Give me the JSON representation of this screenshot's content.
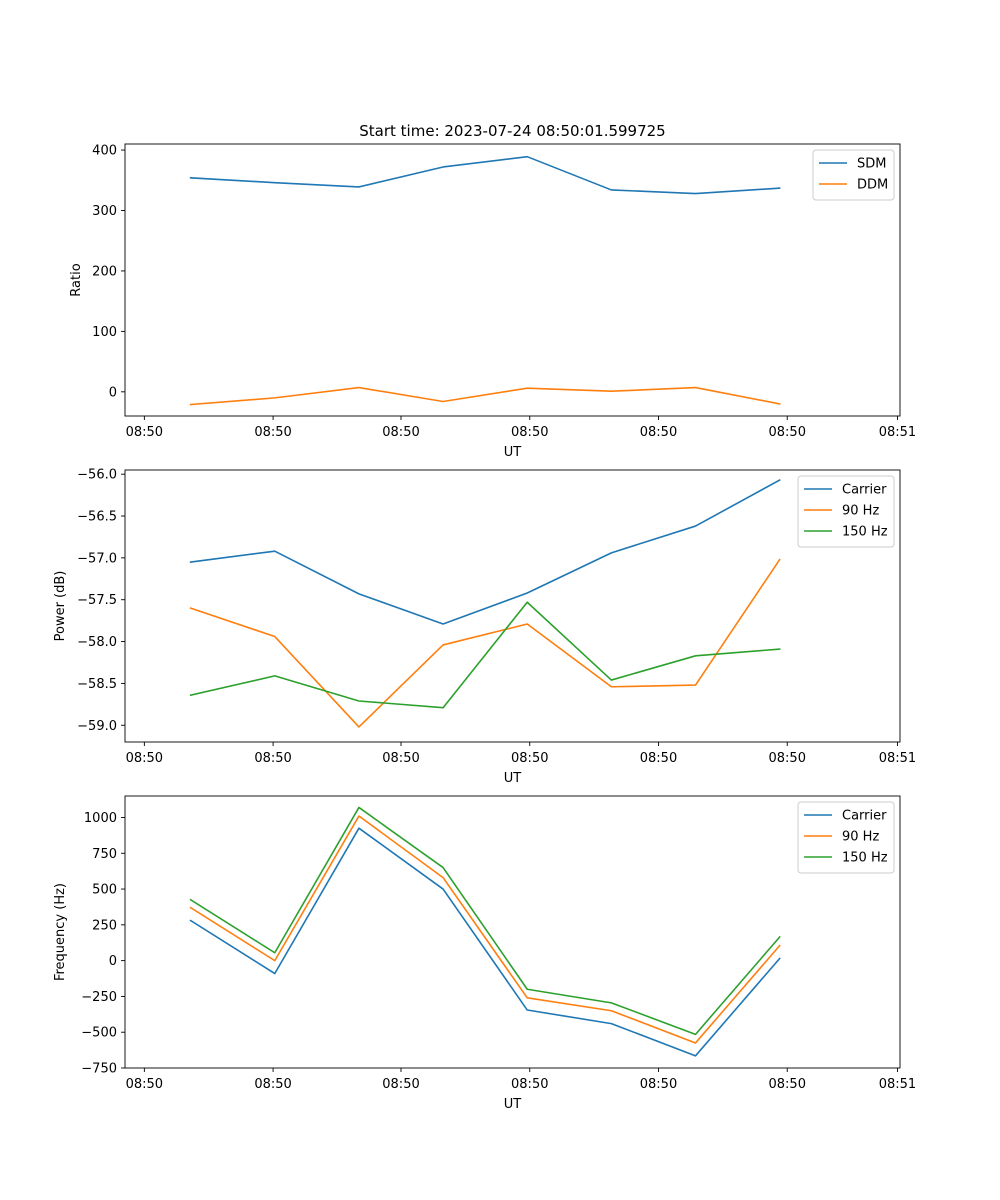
{
  "figure_title": "Start time: 2023-07-24 08:50:01.599725",
  "colors": {
    "blue": "#1f77b4",
    "orange": "#ff7f0e",
    "green": "#2ca02c",
    "axis": "#000000",
    "background": "#ffffff",
    "legend_border": "#cccccc"
  },
  "chart_data": [
    {
      "type": "line",
      "title": "Start time: 2023-07-24 08:50:01.599725",
      "xlabel": "UT",
      "ylabel": "Ratio",
      "x": [
        1,
        2,
        3,
        4,
        5,
        6,
        7,
        8
      ],
      "xlim": [
        0.22,
        9.43
      ],
      "x_ticks": [
        0.45,
        1.98,
        3.5,
        5.03,
        6.56,
        8.09,
        9.4
      ],
      "x_tick_labels": [
        "08:50",
        "08:50",
        "08:50",
        "08:50",
        "08:50",
        "08:50",
        "08:51"
      ],
      "ylim": [
        -40,
        410
      ],
      "y_ticks": [
        0,
        100,
        200,
        300,
        400
      ],
      "y_tick_labels": [
        "0",
        "100",
        "200",
        "300",
        "400"
      ],
      "legend": "top-right",
      "series": [
        {
          "name": "SDM",
          "color": "#1f77b4",
          "values": [
            354,
            346,
            339,
            372,
            389,
            334,
            328,
            337
          ]
        },
        {
          "name": "DDM",
          "color": "#ff7f0e",
          "values": [
            -21,
            -10,
            7,
            -16,
            6,
            1,
            7,
            -20
          ]
        }
      ]
    },
    {
      "type": "line",
      "title": "",
      "xlabel": "UT",
      "ylabel": "Power (dB)",
      "x": [
        1,
        2,
        3,
        4,
        5,
        6,
        7,
        8
      ],
      "xlim": [
        0.22,
        9.43
      ],
      "x_ticks": [
        0.45,
        1.98,
        3.5,
        5.03,
        6.56,
        8.09,
        9.4
      ],
      "x_tick_labels": [
        "08:50",
        "08:50",
        "08:50",
        "08:50",
        "08:50",
        "08:50",
        "08:51"
      ],
      "ylim": [
        -59.2,
        -55.95
      ],
      "y_ticks": [
        -59.0,
        -58.5,
        -58.0,
        -57.5,
        -57.0,
        -56.5,
        -56.0
      ],
      "y_tick_labels": [
        "−59.0",
        "−58.5",
        "−58.0",
        "−57.5",
        "−57.0",
        "−56.5",
        "−56.0"
      ],
      "legend": "top-right",
      "series": [
        {
          "name": "Carrier",
          "color": "#1f77b4",
          "values": [
            -57.05,
            -56.92,
            -57.43,
            -57.79,
            -57.42,
            -56.94,
            -56.62,
            -56.07
          ]
        },
        {
          "name": "90 Hz",
          "color": "#ff7f0e",
          "values": [
            -57.6,
            -57.94,
            -59.02,
            -58.04,
            -57.79,
            -58.54,
            -58.52,
            -57.02
          ]
        },
        {
          "name": "150 Hz",
          "color": "#2ca02c",
          "values": [
            -58.64,
            -58.41,
            -58.71,
            -58.79,
            -57.53,
            -58.46,
            -58.17,
            -58.09
          ]
        }
      ]
    },
    {
      "type": "line",
      "title": "",
      "xlabel": "UT",
      "ylabel": "Frequency (Hz)",
      "x": [
        1,
        2,
        3,
        4,
        5,
        6,
        7,
        8
      ],
      "xlim": [
        0.22,
        9.43
      ],
      "x_ticks": [
        0.45,
        1.98,
        3.5,
        5.03,
        6.56,
        8.09,
        9.4
      ],
      "x_tick_labels": [
        "08:50",
        "08:50",
        "08:50",
        "08:50",
        "08:50",
        "08:50",
        "08:51"
      ],
      "ylim": [
        -750,
        1150
      ],
      "y_ticks": [
        -750,
        -500,
        -250,
        0,
        250,
        500,
        750,
        1000
      ],
      "y_tick_labels": [
        "−750",
        "−500",
        "−250",
        "0",
        "250",
        "500",
        "750",
        "1000"
      ],
      "legend": "top-right",
      "series": [
        {
          "name": "Carrier",
          "color": "#1f77b4",
          "values": [
            280,
            -90,
            925,
            500,
            -345,
            -440,
            -665,
            15
          ]
        },
        {
          "name": "90 Hz",
          "color": "#ff7f0e",
          "values": [
            370,
            0,
            1010,
            580,
            -260,
            -350,
            -575,
            105
          ]
        },
        {
          "name": "150 Hz",
          "color": "#2ca02c",
          "values": [
            425,
            55,
            1070,
            650,
            -200,
            -295,
            -515,
            165
          ]
        }
      ]
    }
  ]
}
